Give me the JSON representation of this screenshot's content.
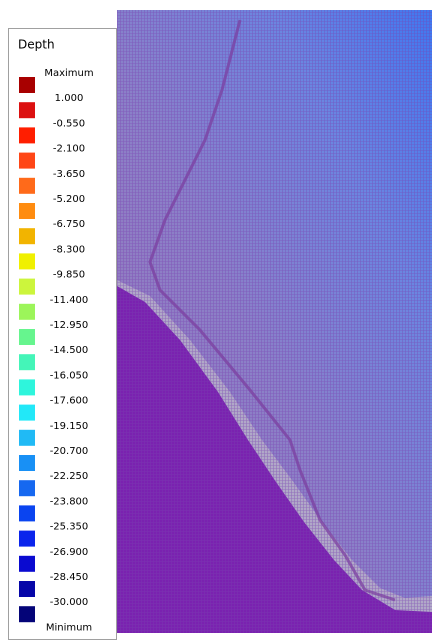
{
  "legend": {
    "title": "Depth",
    "labels": [
      "Maximum",
      "1.000",
      "-0.550",
      "-2.100",
      "-3.650",
      "-5.200",
      "-6.750",
      "-8.300",
      "-9.850",
      "-11.400",
      "-12.950",
      "-14.500",
      "-16.050",
      "-17.600",
      "-19.150",
      "-20.700",
      "-22.250",
      "-23.800",
      "-25.350",
      "-26.900",
      "-28.450",
      "-30.000",
      "Minimum"
    ],
    "colors": [
      "#a80000",
      "#dc1010",
      "#ff1e00",
      "#ff4616",
      "#ff6a1a",
      "#ff8c10",
      "#f2b400",
      "#f0f000",
      "#ccf53c",
      "#9cf55a",
      "#66f58e",
      "#44f5b8",
      "#2ef5dc",
      "#22e8f8",
      "#20baf5",
      "#1890f5",
      "#1668f0",
      "#0a44f0",
      "#0a24ec",
      "#0a0ad0",
      "#0606a8",
      "#040478"
    ]
  }
}
